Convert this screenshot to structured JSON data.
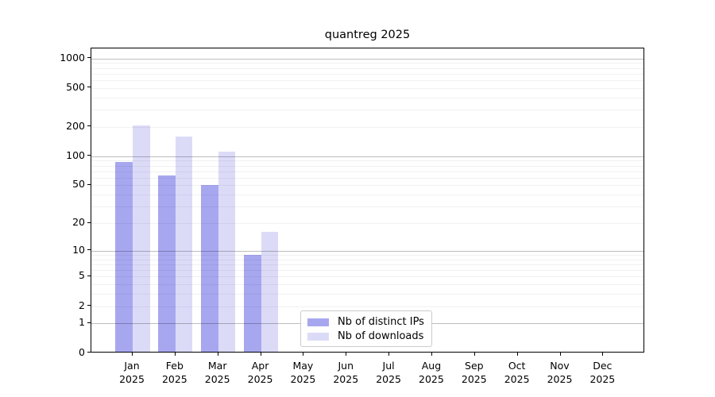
{
  "figure": {
    "title": "quantreg 2025"
  },
  "chart_data": {
    "type": "bar",
    "title": "quantreg 2025",
    "categories": [
      "Jan",
      "Feb",
      "Mar",
      "Apr",
      "May",
      "Jun",
      "Jul",
      "Aug",
      "Sep",
      "Oct",
      "Nov",
      "Dec"
    ],
    "category_year": "2025",
    "series": [
      {
        "name": "Nb of distinct IPs",
        "color": "#a7a7f0",
        "values": [
          87,
          63,
          50,
          9,
          0,
          0,
          0,
          0,
          0,
          0,
          0,
          0
        ]
      },
      {
        "name": "Nb of downloads",
        "color": "#dbdbf8",
        "values": [
          207,
          160,
          112,
          16,
          0,
          0,
          0,
          0,
          0,
          0,
          0,
          0
        ]
      }
    ],
    "y_axis": {
      "scale": "log10(1+y)",
      "ticks": [
        0,
        1,
        2,
        5,
        10,
        20,
        50,
        100,
        200,
        500,
        1000
      ],
      "major_gridlines": [
        1,
        10,
        100,
        1000
      ],
      "minor_gridline_decades": [
        1,
        10,
        100
      ],
      "range": [
        0,
        1000
      ]
    },
    "x_axis": {
      "label_line_2": "2025"
    },
    "legend": {
      "position": "inside-bottom-center",
      "entries": [
        "Nb of distinct IPs",
        "Nb of downloads"
      ]
    },
    "grid": "horizontal major+minor",
    "colors": {
      "background": "#ffffff",
      "frame": "#000000",
      "legend_border": "#cccccc"
    }
  }
}
